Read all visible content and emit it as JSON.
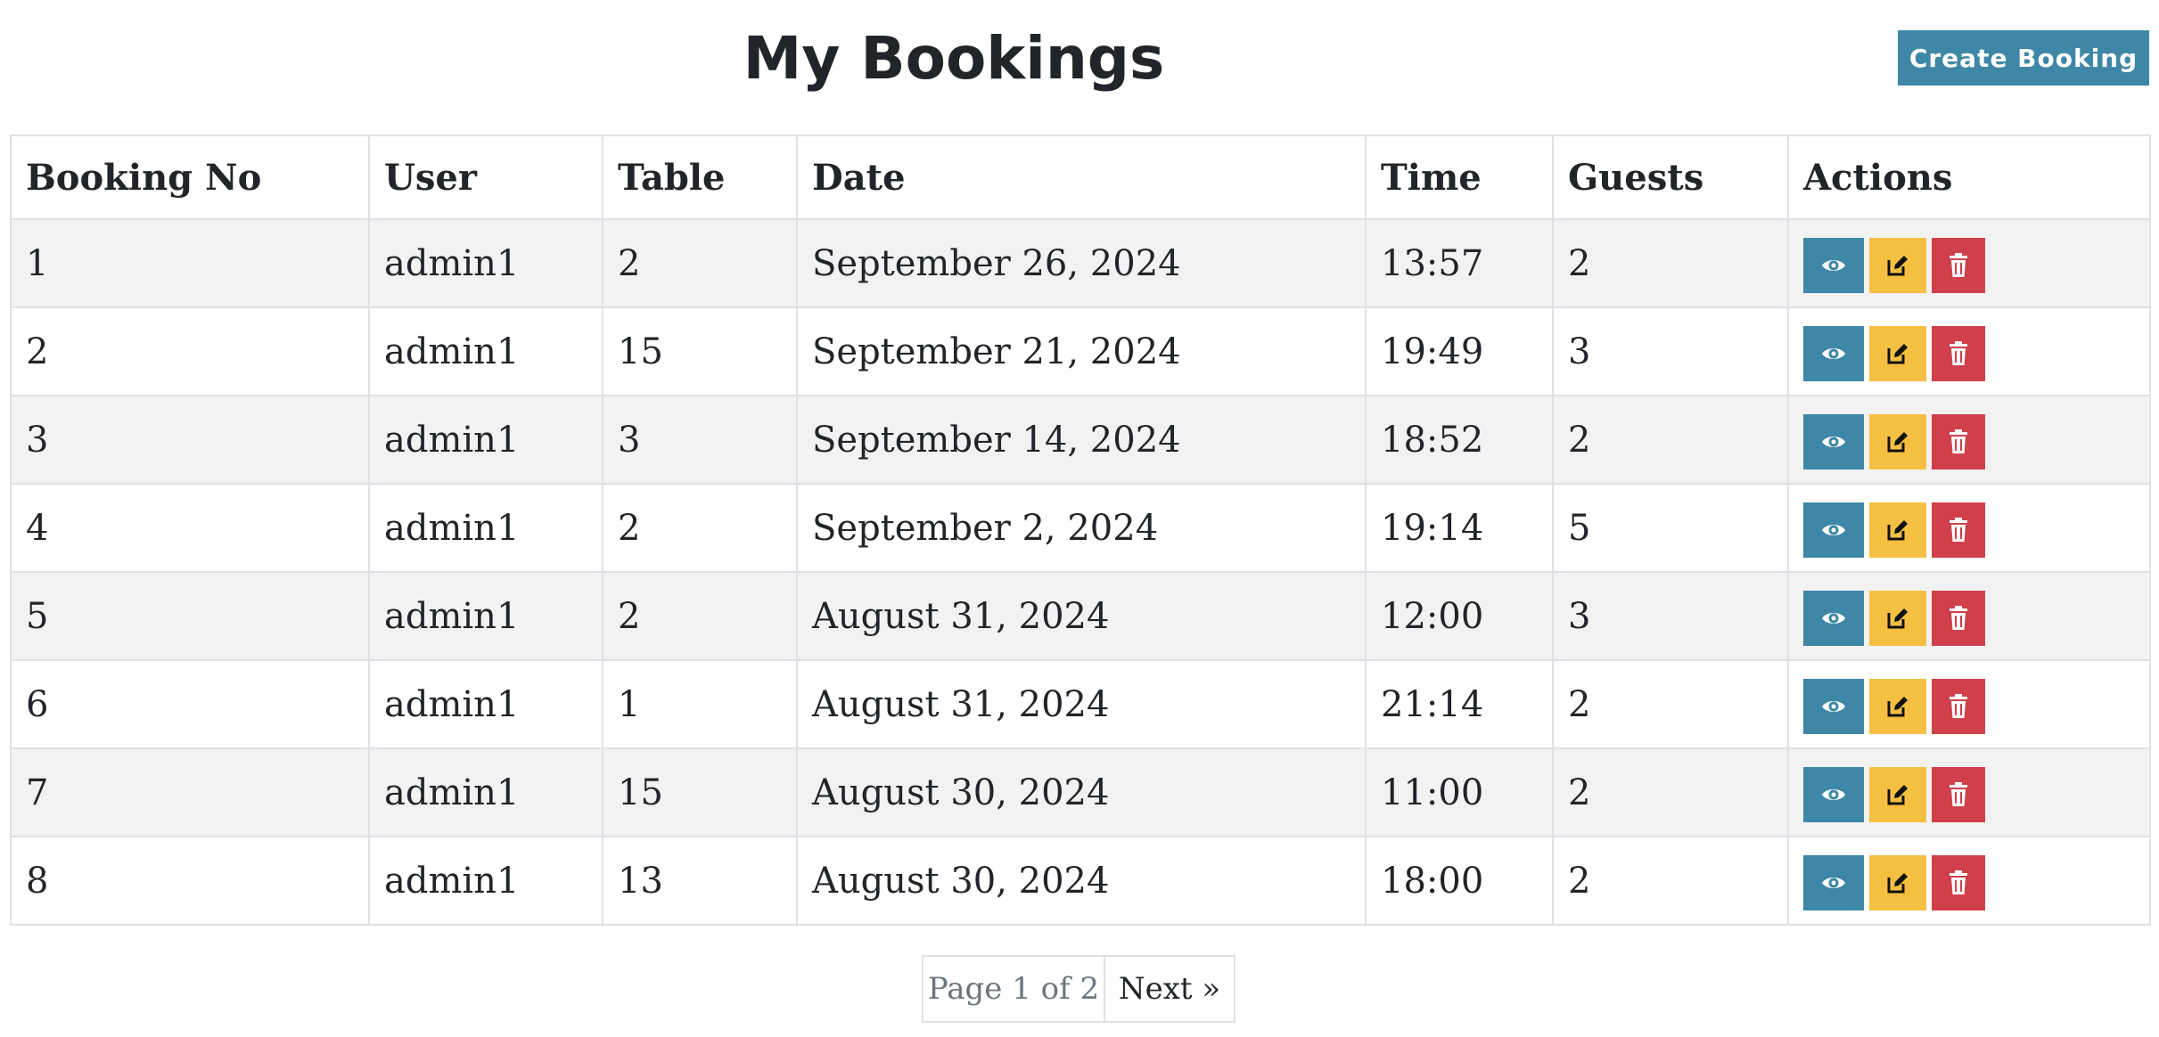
{
  "header": {
    "title": "My Bookings",
    "create_button_label": "Create Booking"
  },
  "table": {
    "columns": [
      "Booking No",
      "User",
      "Table",
      "Date",
      "Time",
      "Guests",
      "Actions"
    ],
    "rows": [
      {
        "booking_no": "1",
        "user": "admin1",
        "table": "2",
        "date": "September 26, 2024",
        "time": "13:57",
        "guests": "2"
      },
      {
        "booking_no": "2",
        "user": "admin1",
        "table": "15",
        "date": "September 21, 2024",
        "time": "19:49",
        "guests": "3"
      },
      {
        "booking_no": "3",
        "user": "admin1",
        "table": "3",
        "date": "September 14, 2024",
        "time": "18:52",
        "guests": "2"
      },
      {
        "booking_no": "4",
        "user": "admin1",
        "table": "2",
        "date": "September 2, 2024",
        "time": "19:14",
        "guests": "5"
      },
      {
        "booking_no": "5",
        "user": "admin1",
        "table": "2",
        "date": "August 31, 2024",
        "time": "12:00",
        "guests": "3"
      },
      {
        "booking_no": "6",
        "user": "admin1",
        "table": "1",
        "date": "August 31, 2024",
        "time": "21:14",
        "guests": "2"
      },
      {
        "booking_no": "7",
        "user": "admin1",
        "table": "15",
        "date": "August 30, 2024",
        "time": "11:00",
        "guests": "2"
      },
      {
        "booking_no": "8",
        "user": "admin1",
        "table": "13",
        "date": "August 30, 2024",
        "time": "18:00",
        "guests": "2"
      }
    ],
    "action_icons": {
      "view": "eye-icon",
      "edit": "edit-icon",
      "delete": "trash-icon"
    }
  },
  "pagination": {
    "page_info": "Page 1 of 2",
    "next_label": "Next »"
  },
  "colors": {
    "primary": "#3e87a6",
    "warning": "#f5c042",
    "danger": "#d0404a",
    "row_stripe": "#f2f2f2",
    "border": "#dee2e6"
  }
}
